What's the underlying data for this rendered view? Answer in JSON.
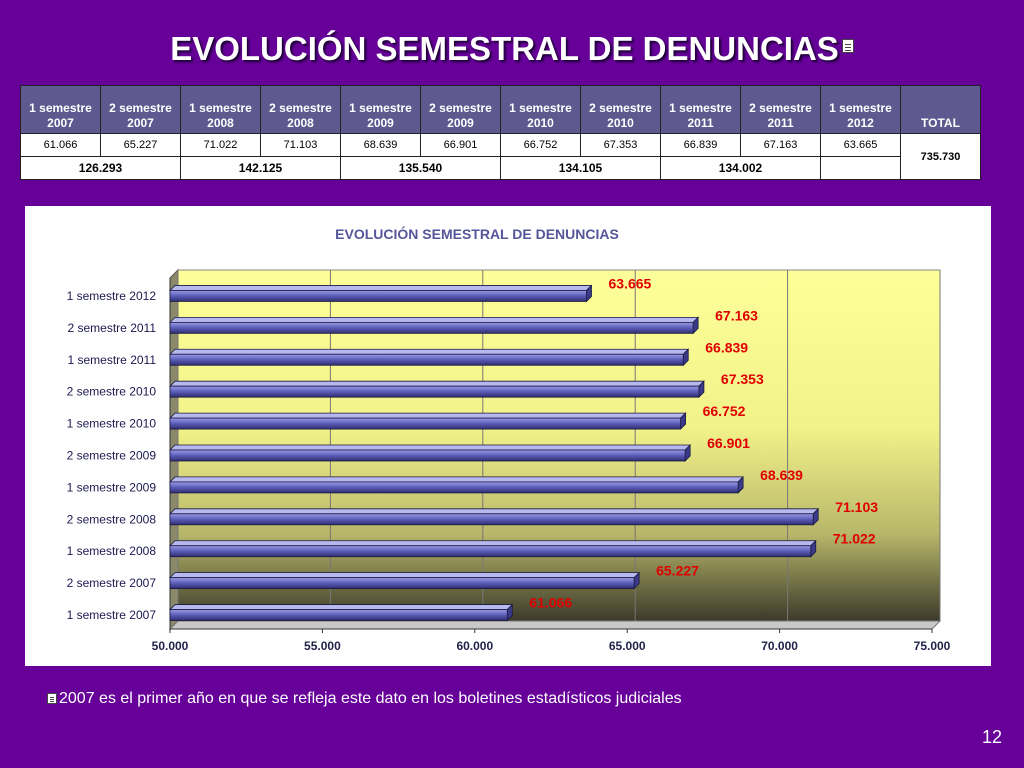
{
  "slide": {
    "title": "EVOLUCIÓN SEMESTRAL DE DENUNCIAS",
    "footnote": "2007 es el primer año en que se refleja este dato en los boletines estadísticos judiciales",
    "page_number": "12"
  },
  "table": {
    "headers": [
      [
        "1 semestre",
        "2007"
      ],
      [
        "2 semestre",
        "2007"
      ],
      [
        "1 semestre",
        "2008"
      ],
      [
        "2 semestre",
        "2008"
      ],
      [
        "1 semestre",
        "2009"
      ],
      [
        "2 semestre",
        "2009"
      ],
      [
        "1 semestre",
        "2010"
      ],
      [
        "2 semestre",
        "2010"
      ],
      [
        "1 semestre",
        "2011"
      ],
      [
        "2 semestre",
        "2011"
      ],
      [
        "1 semestre",
        "2012"
      ]
    ],
    "total_header": "TOTAL",
    "values": [
      "61.066",
      "65.227",
      "71.022",
      "71.103",
      "68.639",
      "66.901",
      "66.752",
      "67.353",
      "66.839",
      "67.163",
      "63.665"
    ],
    "total": "735.730",
    "yearly_sums": [
      "126.293",
      "142.125",
      "135.540",
      "134.105",
      "134.002"
    ]
  },
  "chart_data": {
    "type": "bar",
    "orientation": "horizontal",
    "title": "EVOLUCIÓN SEMESTRAL DE DENUNCIAS",
    "categories": [
      "1 semestre 2007",
      "2 semestre 2007",
      "1 semestre 2008",
      "2 semestre 2008",
      "1 semestre 2009",
      "2 semestre 2009",
      "1 semestre 2010",
      "2 semestre 2010",
      "1 semestre 2011",
      "2 semestre 2011",
      "1 semestre 2012"
    ],
    "values": [
      61066,
      65227,
      71022,
      71103,
      68639,
      66901,
      66752,
      67353,
      66839,
      67163,
      63665
    ],
    "data_labels": [
      "61.066",
      "65.227",
      "71.022",
      "71.103",
      "68.639",
      "66.901",
      "66.752",
      "67.353",
      "66.839",
      "67.163",
      "63.665"
    ],
    "xlim": [
      50000,
      75000
    ],
    "x_ticks": [
      50000,
      55000,
      60000,
      65000,
      70000,
      75000
    ],
    "x_tick_labels": [
      "50.000",
      "55.000",
      "60.000",
      "65.000",
      "70.000",
      "75.000"
    ],
    "grid": true,
    "legend": "none",
    "bar_color": "#5c5cb8",
    "label_color": "#e00000"
  }
}
